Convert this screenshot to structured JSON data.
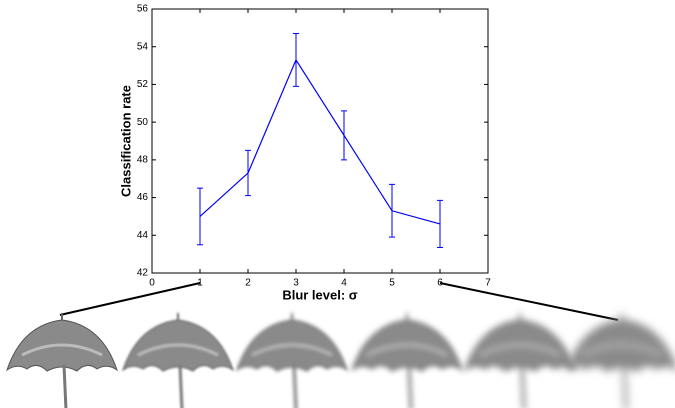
{
  "chart_data": {
    "type": "line",
    "x_label": "Blur level: σ",
    "y_label": "Classification rate",
    "x": [
      1,
      2,
      3,
      4,
      5,
      6
    ],
    "series": [
      {
        "color": "#0000ff",
        "values": [
          45.0,
          47.3,
          53.3,
          49.3,
          45.3,
          44.6
        ],
        "errors": [
          1.5,
          1.2,
          1.4,
          1.3,
          1.4,
          1.25
        ]
      }
    ],
    "xlim": [
      0,
      7
    ],
    "xticks": [
      0,
      1,
      2,
      3,
      4,
      5,
      6,
      7
    ],
    "ylim": [
      42,
      56
    ],
    "yticks": [
      42,
      44,
      46,
      48,
      50,
      52,
      54,
      56
    ]
  }
}
